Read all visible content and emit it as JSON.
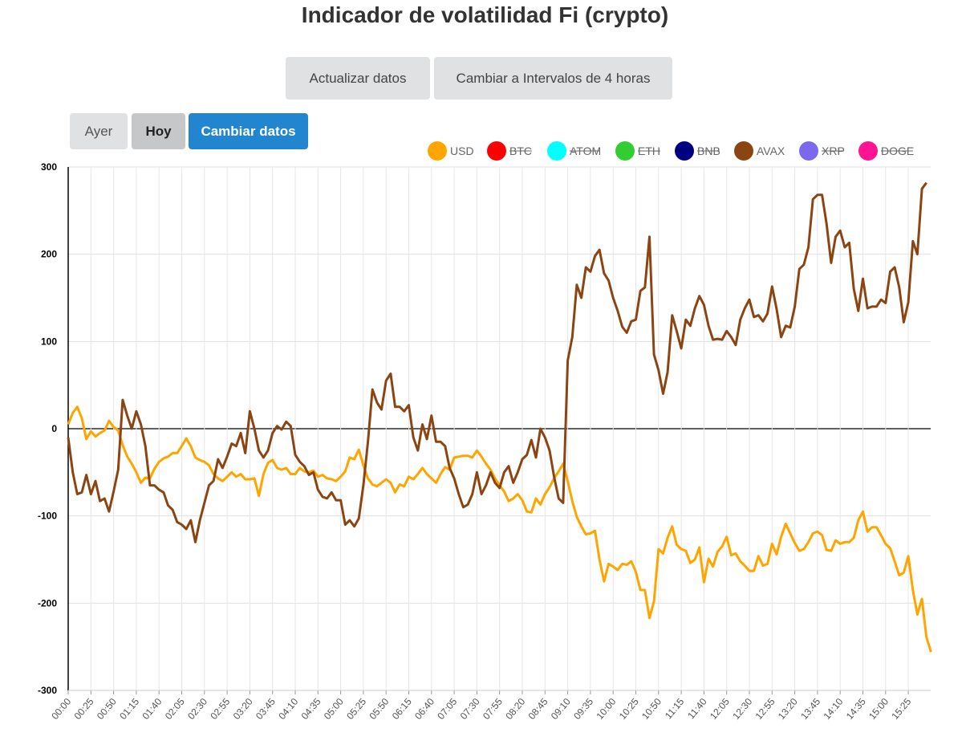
{
  "header": {
    "title": "Indicador de volatilidad Fi (crypto)"
  },
  "toolbar": {
    "refresh_label": "Actualizar datos",
    "interval_label": "Cambiar a Intervalos de 4 horas"
  },
  "day_selector": {
    "yesterday_label": "Ayer",
    "today_label": "Hoy",
    "change_label": "Cambiar datos",
    "active_color": "#2185d0"
  },
  "chart_data": {
    "type": "line",
    "title": "",
    "xlabel": "",
    "ylabel": "",
    "ylim": [
      -300,
      300
    ],
    "y_ticks": [
      300,
      200,
      100,
      0,
      -100,
      -200,
      -300
    ],
    "grid": true,
    "legend_position": "top-right",
    "x_tick_labels": [
      "00:00",
      "00:25",
      "00:50",
      "01:15",
      "01:40",
      "02:05",
      "02:30",
      "02:55",
      "03:20",
      "03:45",
      "04:10",
      "04:35",
      "05:00",
      "05:25",
      "05:50",
      "06:15",
      "06:40",
      "07:05",
      "07:30",
      "07:55",
      "08:20",
      "08:45",
      "09:10",
      "09:35",
      "10:00",
      "10:25",
      "10:50",
      "11:15",
      "11:40",
      "12:05",
      "12:30",
      "12:55",
      "13:20",
      "13:45",
      "14:10",
      "14:35",
      "15:00",
      "15:25"
    ],
    "x_step_minutes": 5,
    "legend": [
      {
        "name": "USD",
        "color": "#ffa500",
        "hidden": false
      },
      {
        "name": "BTC",
        "color": "#ff0000",
        "hidden": true
      },
      {
        "name": "ATOM",
        "color": "#00ffff",
        "hidden": true
      },
      {
        "name": "ETH",
        "color": "#32cd32",
        "hidden": true
      },
      {
        "name": "BNB",
        "color": "#000080",
        "hidden": true
      },
      {
        "name": "AVAX",
        "color": "#8b4513",
        "hidden": false
      },
      {
        "name": "XRP",
        "color": "#7b68ee",
        "hidden": true
      },
      {
        "name": "DOGE",
        "color": "#ff1493",
        "hidden": true
      }
    ],
    "series": [
      {
        "name": "USD",
        "color": "#ffa500",
        "values": [
          5,
          18,
          25,
          12,
          -12,
          -3,
          -9,
          -5,
          -2,
          9,
          2,
          -2,
          -19,
          -32,
          -40,
          -50,
          -62,
          -56,
          -57,
          -46,
          -38,
          -34,
          -32,
          -28,
          -28,
          -20,
          -11,
          -20,
          -33,
          -36,
          -38,
          -42,
          -52,
          -57,
          -60,
          -55,
          -50,
          -55,
          -52,
          -58,
          -58,
          -57,
          -77,
          -52,
          -39,
          -36,
          -45,
          -47,
          -45,
          -52,
          -52,
          -45,
          -49,
          -50,
          -48,
          -55,
          -53,
          -57,
          -58,
          -60,
          -55,
          -49,
          -33,
          -35,
          -24,
          -42,
          -57,
          -64,
          -66,
          -62,
          -58,
          -62,
          -73,
          -64,
          -66,
          -55,
          -58,
          -52,
          -45,
          -52,
          -57,
          -62,
          -52,
          -44,
          -47,
          -33,
          -32,
          -31,
          -31,
          -33,
          -25,
          -32,
          -40,
          -47,
          -57,
          -65,
          -72,
          -83,
          -80,
          -75,
          -82,
          -95,
          -96,
          -80,
          -87,
          -75,
          -67,
          -57,
          -49,
          -40,
          -60,
          -83,
          -101,
          -112,
          -121,
          -120,
          -117,
          -150,
          -175,
          -155,
          -158,
          -162,
          -155,
          -156,
          -152,
          -164,
          -185,
          -185,
          -217,
          -198,
          -138,
          -143,
          -125,
          -112,
          -133,
          -138,
          -140,
          -154,
          -150,
          -136,
          -176,
          -149,
          -158,
          -141,
          -135,
          -124,
          -145,
          -143,
          -152,
          -157,
          -163,
          -163,
          -146,
          -157,
          -155,
          -132,
          -144,
          -124,
          -109,
          -120,
          -131,
          -140,
          -138,
          -130,
          -120,
          -118,
          -122,
          -139,
          -140,
          -128,
          -132,
          -130,
          -130,
          -125,
          -105,
          -95,
          -118,
          -113,
          -113,
          -122,
          -132,
          -137,
          -152,
          -168,
          -165,
          -146,
          -185,
          -213,
          -195,
          -239,
          -256
        ]
      },
      {
        "name": "AVAX",
        "color": "#8b4513",
        "values": [
          -10,
          -50,
          -75,
          -73,
          -53,
          -75,
          -60,
          -83,
          -80,
          -95,
          -72,
          -47,
          33,
          15,
          0,
          20,
          5,
          -20,
          -65,
          -65,
          -70,
          -73,
          -88,
          -93,
          -107,
          -110,
          -115,
          -105,
          -130,
          -105,
          -85,
          -65,
          -60,
          -35,
          -45,
          -32,
          -17,
          -20,
          -5,
          -28,
          20,
          0,
          -25,
          -33,
          -25,
          -5,
          3,
          -1,
          8,
          3,
          -30,
          -38,
          -43,
          -53,
          -50,
          -70,
          -78,
          -80,
          -73,
          -82,
          -82,
          -110,
          -105,
          -112,
          -103,
          -65,
          -15,
          45,
          30,
          22,
          55,
          63,
          25,
          25,
          20,
          27,
          -10,
          -25,
          5,
          -12,
          15,
          -15,
          -15,
          -20,
          -45,
          -57,
          -75,
          -90,
          -87,
          -75,
          -50,
          -75,
          -65,
          -50,
          -62,
          -68,
          -50,
          -43,
          -62,
          -50,
          -35,
          -30,
          -13,
          -33,
          0,
          -10,
          -25,
          -55,
          -80,
          -85,
          78,
          105,
          165,
          150,
          185,
          180,
          198,
          205,
          178,
          170,
          150,
          135,
          117,
          110,
          123,
          125,
          158,
          162,
          220,
          85,
          67,
          40,
          65,
          130,
          112,
          92,
          125,
          118,
          138,
          152,
          142,
          118,
          102,
          103,
          102,
          112,
          105,
          96,
          125,
          138,
          148,
          128,
          130,
          123,
          132,
          163,
          137,
          105,
          118,
          116,
          140,
          183,
          188,
          208,
          263,
          268,
          268,
          235,
          190,
          220,
          227,
          208,
          213,
          160,
          135,
          172,
          138,
          140,
          140,
          148,
          144,
          180,
          185,
          162,
          122,
          145,
          215,
          200,
          275,
          282
        ]
      }
    ]
  }
}
